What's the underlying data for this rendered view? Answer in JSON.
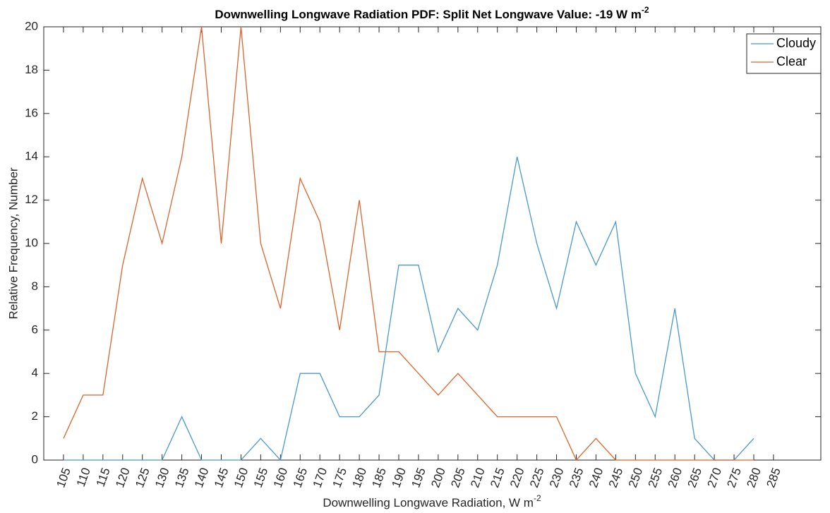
{
  "chart_data": {
    "type": "line",
    "title": "Downwelling Longwave Radiation PDF: Split Net Longwave Value: -19 W m",
    "title_superscript": "-2",
    "x_label": "Downwelling Longwave Radiation, W m",
    "x_label_superscript": "-2",
    "y_label": "Relative Frequency, Number",
    "x": [
      105,
      110,
      115,
      120,
      125,
      130,
      135,
      140,
      145,
      150,
      155,
      160,
      165,
      170,
      175,
      180,
      185,
      190,
      195,
      200,
      205,
      210,
      215,
      220,
      225,
      230,
      235,
      240,
      245,
      250,
      255,
      260,
      265,
      270,
      275,
      280
    ],
    "series": [
      {
        "name": "Cloudy",
        "color": "#4a98cc",
        "values": [
          0,
          0,
          0,
          0,
          0,
          0,
          2,
          0,
          0,
          0,
          1,
          0,
          4,
          4,
          2,
          2,
          3,
          9,
          9,
          5,
          7,
          6,
          9,
          14,
          10,
          7,
          11,
          9,
          11,
          4,
          2,
          7,
          1,
          0,
          0,
          1
        ]
      },
      {
        "name": "Clear",
        "color": "#d9652c",
        "values": [
          1,
          3,
          3,
          9,
          13,
          10,
          14,
          20,
          10,
          20,
          10,
          7,
          13,
          11,
          6,
          12,
          5,
          5,
          4,
          3,
          4,
          3,
          2,
          2,
          2,
          2,
          0,
          1,
          0,
          0,
          0,
          0,
          0,
          0,
          0,
          0
        ]
      }
    ],
    "xlim": [
      100,
      297
    ],
    "xticks": [
      105,
      110,
      115,
      120,
      125,
      130,
      135,
      140,
      145,
      150,
      155,
      160,
      165,
      170,
      175,
      180,
      185,
      190,
      195,
      200,
      205,
      210,
      215,
      220,
      225,
      230,
      235,
      240,
      245,
      250,
      255,
      260,
      265,
      270,
      275,
      280,
      285
    ],
    "ylim": [
      0,
      20
    ],
    "yticks": [
      0,
      2,
      4,
      6,
      8,
      10,
      12,
      14,
      16,
      18,
      20
    ],
    "legend": "top-right",
    "grid": false
  }
}
